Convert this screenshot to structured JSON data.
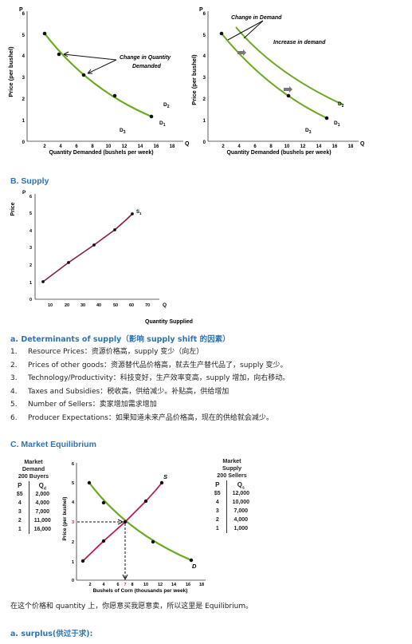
{
  "demand_chart": {
    "p_axis": "P",
    "q_axis": "Q",
    "y_label": "Price (per bushel)",
    "x_label": "Quantity Demanded (bushels per week)",
    "y_ticks": [
      "0",
      "1",
      "2",
      "3",
      "4",
      "5",
      "6"
    ],
    "x_ticks": [
      "2",
      "4",
      "6",
      "8",
      "10",
      "12",
      "14",
      "16",
      "18"
    ],
    "annotation": "Change in Quantity\nDemanded",
    "curve_labels": {
      "d1": "D1",
      "d2": "D2",
      "d3": "D3"
    },
    "curve_color": "#6aaa1e"
  },
  "demand_shift_chart": {
    "p_axis": "P",
    "q_axis": "Q",
    "y_label": "Price (per bushel)",
    "x_label": "Quantity Demanded (bushels per week)",
    "y_ticks": [
      "0",
      "1",
      "2",
      "3",
      "4",
      "5",
      "6"
    ],
    "x_ticks": [
      "2",
      "4",
      "6",
      "8",
      "10",
      "12",
      "14",
      "16",
      "18"
    ],
    "annotation_top": "Change in Demand",
    "annotation_right": "Increase in demand",
    "curve_labels": {
      "d1": "D1",
      "d2": "D2",
      "d3": "D3"
    },
    "curve_color": "#6aaa1e"
  },
  "section_b": {
    "heading": "B. Supply"
  },
  "supply_chart": {
    "p_axis": "P",
    "q_axis": "Q",
    "y_label": "Price",
    "x_label": "Quantity Supplied",
    "y_ticks": [
      "0",
      "1",
      "2",
      "3",
      "4",
      "5",
      "6"
    ],
    "x_ticks": [
      "10",
      "20",
      "30",
      "40",
      "50",
      "60",
      "70"
    ],
    "curve_label": "S1",
    "curve_color": "#8b1a4a"
  },
  "determinants": {
    "title": "a.  Determinants of supply（影响 supply shift 的因素）",
    "items": [
      {
        "num": "1.",
        "text": "Resource Prices：资源价格高，supply 变少（向左）"
      },
      {
        "num": "2.",
        "text": "Prices of other goods：资源替代品价格高，就去生产替代品了，supply 变少。"
      },
      {
        "num": "3.",
        "text": "Technology/Productivity：科技变好，生产效率变高，supply 增加，向右移动。"
      },
      {
        "num": "4.",
        "text": "Taxes and Subsidies：税收高，供给减少。补贴高，供给增加"
      },
      {
        "num": "5.",
        "text": "Number of Sellers：卖家增加需求增加"
      },
      {
        "num": "6.",
        "text": "Producer Expectations：如果知道未来产品价格高，现在的供给就会减少。"
      }
    ]
  },
  "section_c": {
    "heading": "C.  Market Equilibrium"
  },
  "market_demand_table": {
    "title_lines": [
      "Market",
      "Demand",
      "200 Buyers"
    ],
    "col_p": "P",
    "col_q": "Qd",
    "rows": [
      [
        "$5",
        "2,000"
      ],
      [
        "4",
        "4,000"
      ],
      [
        "3",
        "7,000"
      ],
      [
        "2",
        "11,000"
      ],
      [
        "1",
        "16,000"
      ]
    ]
  },
  "market_supply_table": {
    "title_lines": [
      "Market",
      "Supply",
      "200 Sellers"
    ],
    "col_p": "P",
    "col_q": "Qs",
    "rows": [
      [
        "$5",
        "12,000"
      ],
      [
        "4",
        "10,000"
      ],
      [
        "3",
        "7,000"
      ],
      [
        "2",
        "4,000"
      ],
      [
        "1",
        "1,000"
      ]
    ]
  },
  "equilibrium_chart": {
    "y_label": "Price (per bushel)",
    "x_label": "Bushels of Corn (thousands per week)",
    "y_ticks": [
      "0",
      "1",
      "2",
      "3",
      "4",
      "5",
      "6"
    ],
    "x_ticks": [
      "2",
      "4",
      "6",
      "7",
      "8",
      "10",
      "12",
      "14",
      "16",
      "18"
    ],
    "supply_label": "S",
    "demand_label": "D",
    "supply_color": "#c0185a",
    "demand_color": "#6aaa1e"
  },
  "equilibrium_text": "在这个价格和 quantity 上，你愿意买我愿意卖，所以这里是 Equilibrium。",
  "surplus_heading": "a. surplus(供过于求):"
}
